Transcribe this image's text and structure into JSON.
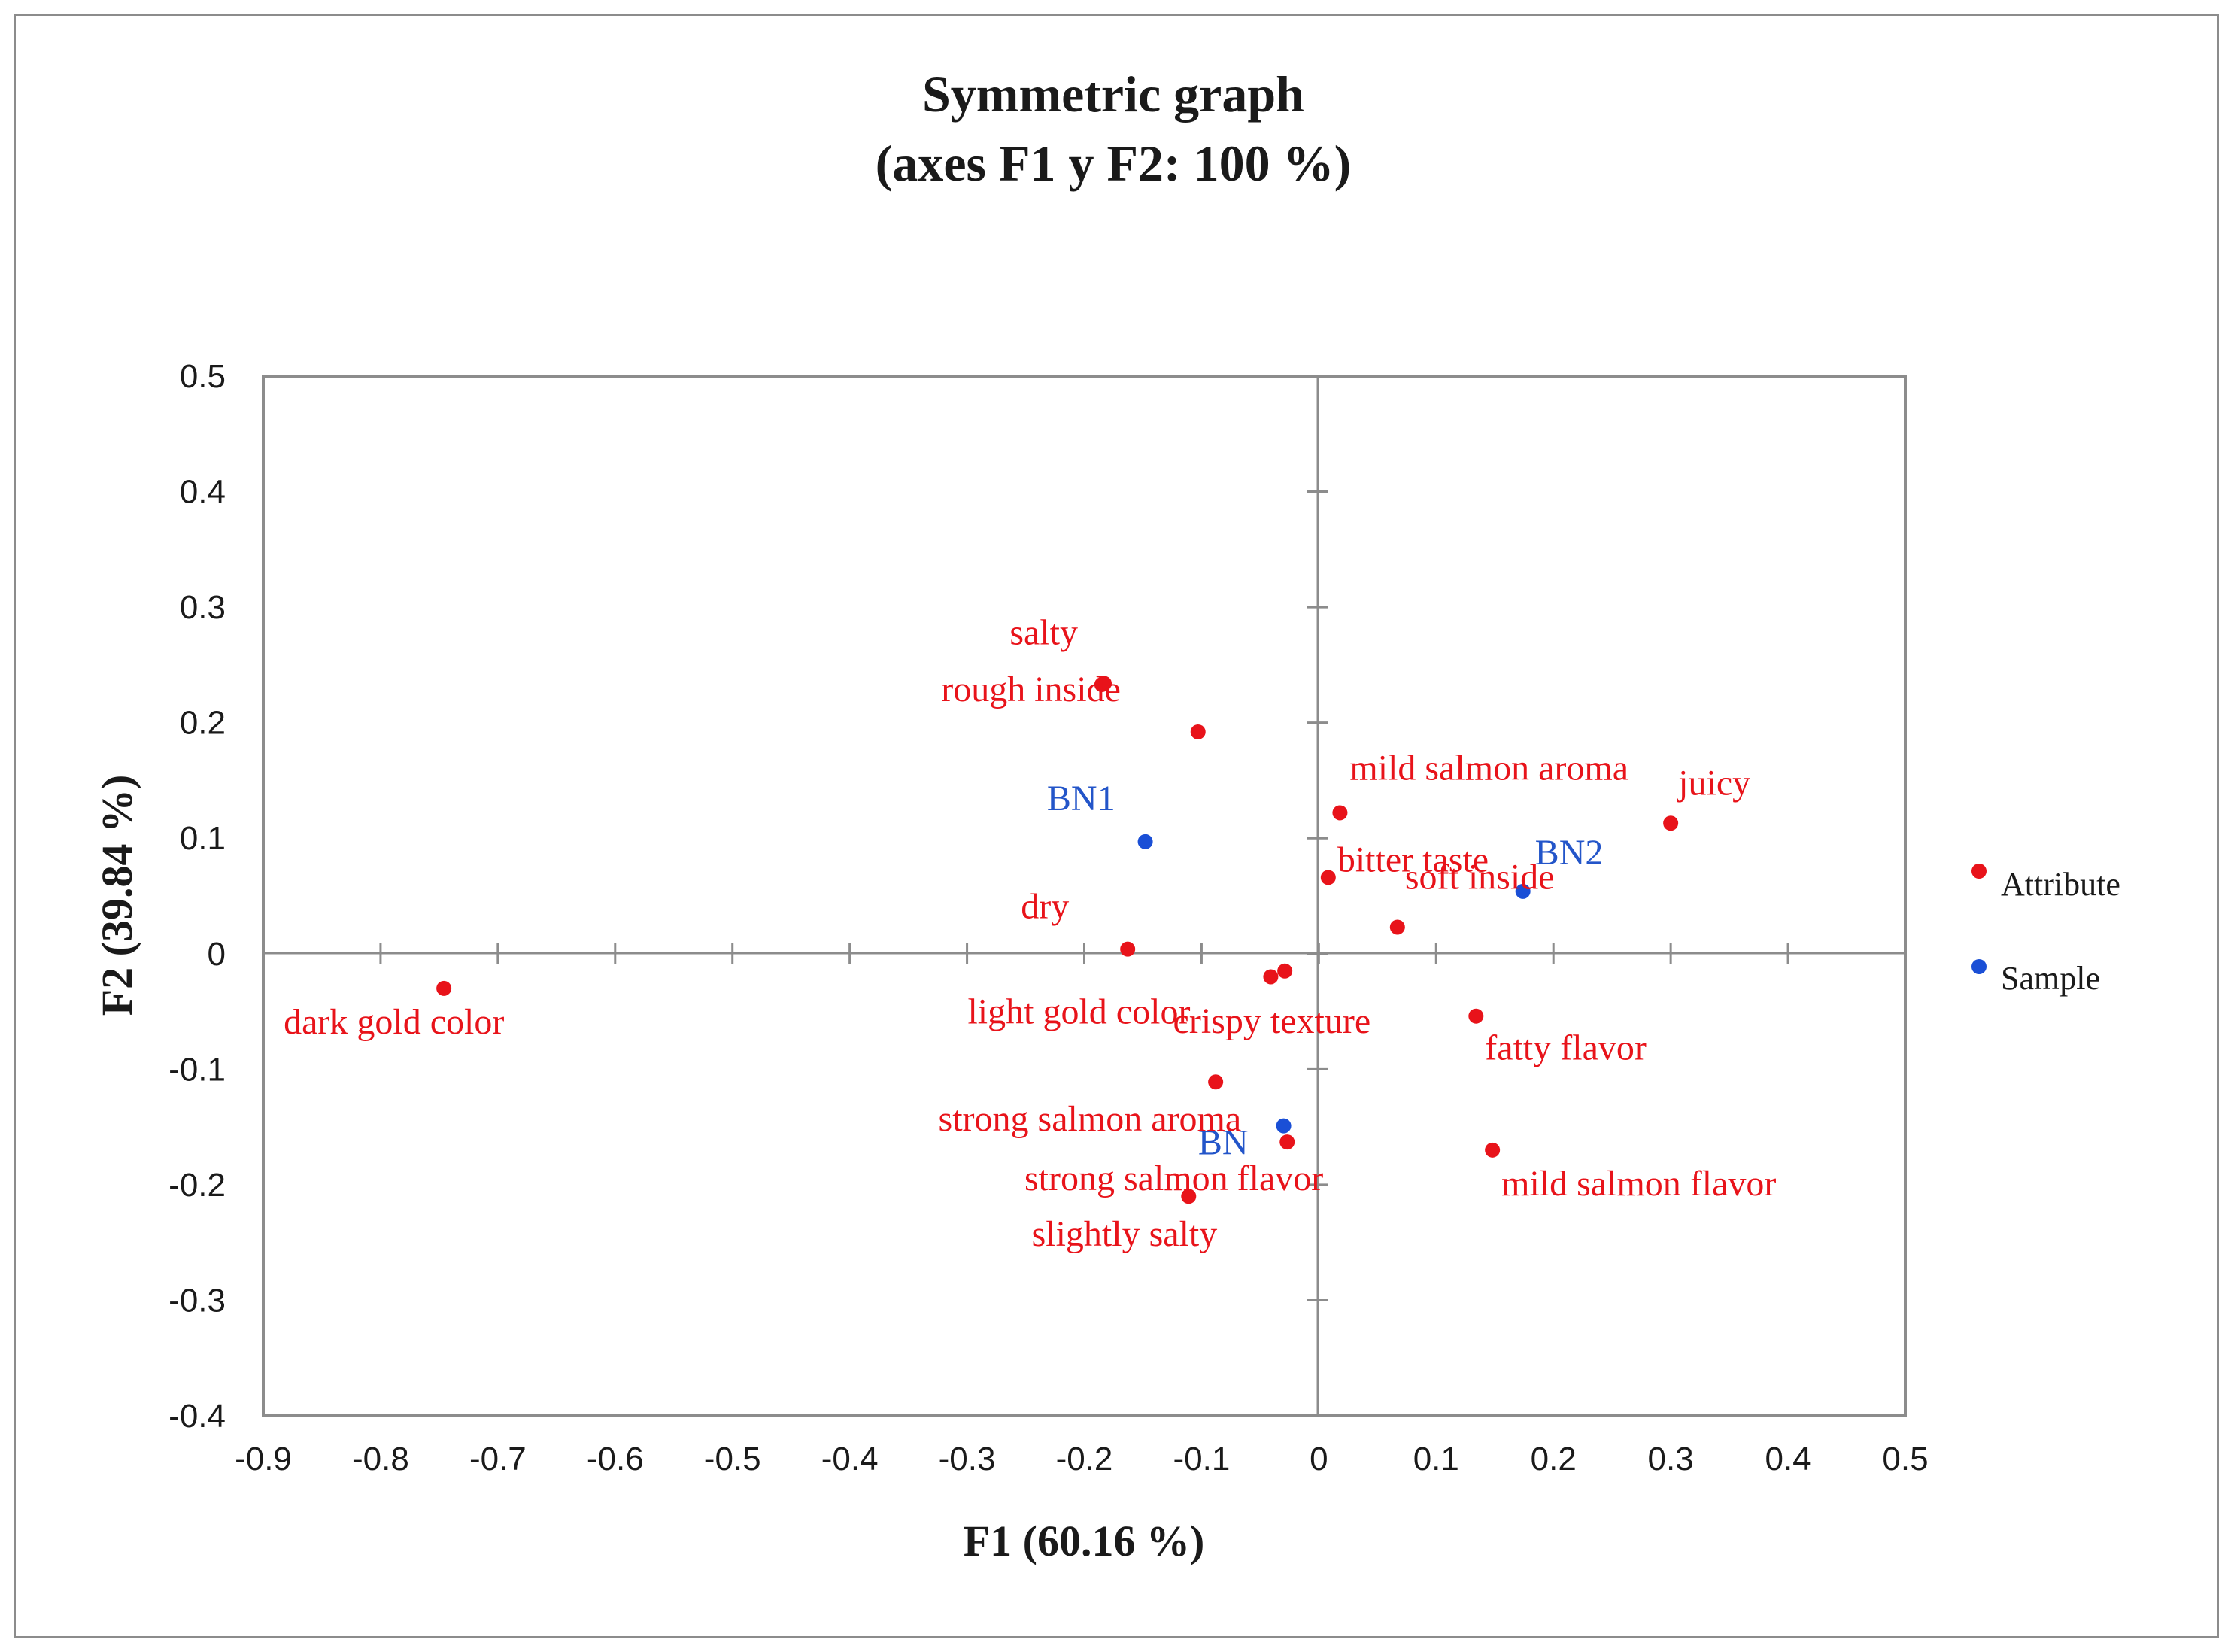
{
  "chart_data": {
    "type": "scatter",
    "title": [
      "Symmetric graph",
      "(axes F1 y F2: 100 %)"
    ],
    "xlabel": "F1 (60.16 %)",
    "ylabel": "F2 (39.84 %)",
    "xlim": [
      -0.9,
      0.5
    ],
    "ylim": [
      -0.4,
      0.5
    ],
    "xticks": [
      "-0.9",
      "-0.8",
      "-0.7",
      "-0.6",
      "-0.5",
      "-0.4",
      "-0.3",
      "-0.2",
      "-0.1",
      "0",
      "0.1",
      "0.2",
      "0.3",
      "0.4",
      "0.5"
    ],
    "yticks": [
      "0.5",
      "0.4",
      "0.3",
      "0.2",
      "0.1",
      "0",
      "-0.1",
      "-0.2",
      "-0.3",
      "-0.4"
    ],
    "legend": [
      {
        "name": "Attribute",
        "color": "#e8131a"
      },
      {
        "name": "Sample",
        "color": "#1a4fd6"
      }
    ],
    "colors": {
      "attribute": "#e8131a",
      "sample": "#1a4fd6",
      "label_sample": "#2355c9"
    },
    "series": [
      {
        "name": "Attribute",
        "points": [
          {
            "label": "salty",
            "x": -0.183,
            "y": 0.234
          },
          {
            "label": "rough inside",
            "x": -0.185,
            "y": 0.233
          },
          {
            "label": "",
            "x": -0.103,
            "y": 0.192
          },
          {
            "label": "dry",
            "x": -0.163,
            "y": 0.004
          },
          {
            "label": "dark gold color",
            "x": -0.746,
            "y": -0.03
          },
          {
            "label": "light gold color",
            "x": -0.041,
            "y": -0.02
          },
          {
            "label": "crispy texture",
            "x": -0.029,
            "y": -0.015
          },
          {
            "label": "strong salmon aroma",
            "x": -0.088,
            "y": -0.111
          },
          {
            "label": "strong salmon flavor",
            "x": -0.027,
            "y": -0.163
          },
          {
            "label": "slightly salty",
            "x": -0.111,
            "y": -0.21
          },
          {
            "label": "mild salmon aroma",
            "x": 0.018,
            "y": 0.122
          },
          {
            "label": "bitter taste",
            "x": 0.008,
            "y": 0.066
          },
          {
            "label": "soft inside",
            "x": 0.067,
            "y": 0.023
          },
          {
            "label": "juicy",
            "x": 0.3,
            "y": 0.113
          },
          {
            "label": "fatty flavor",
            "x": 0.134,
            "y": -0.054
          },
          {
            "label": "mild salmon flavor",
            "x": 0.148,
            "y": -0.17
          }
        ]
      },
      {
        "name": "Sample",
        "points": [
          {
            "label": "BN1",
            "x": -0.148,
            "y": 0.097
          },
          {
            "label": "BN2",
            "x": 0.174,
            "y": 0.054
          },
          {
            "label": "BN",
            "x": -0.03,
            "y": -0.149
          }
        ]
      }
    ]
  }
}
